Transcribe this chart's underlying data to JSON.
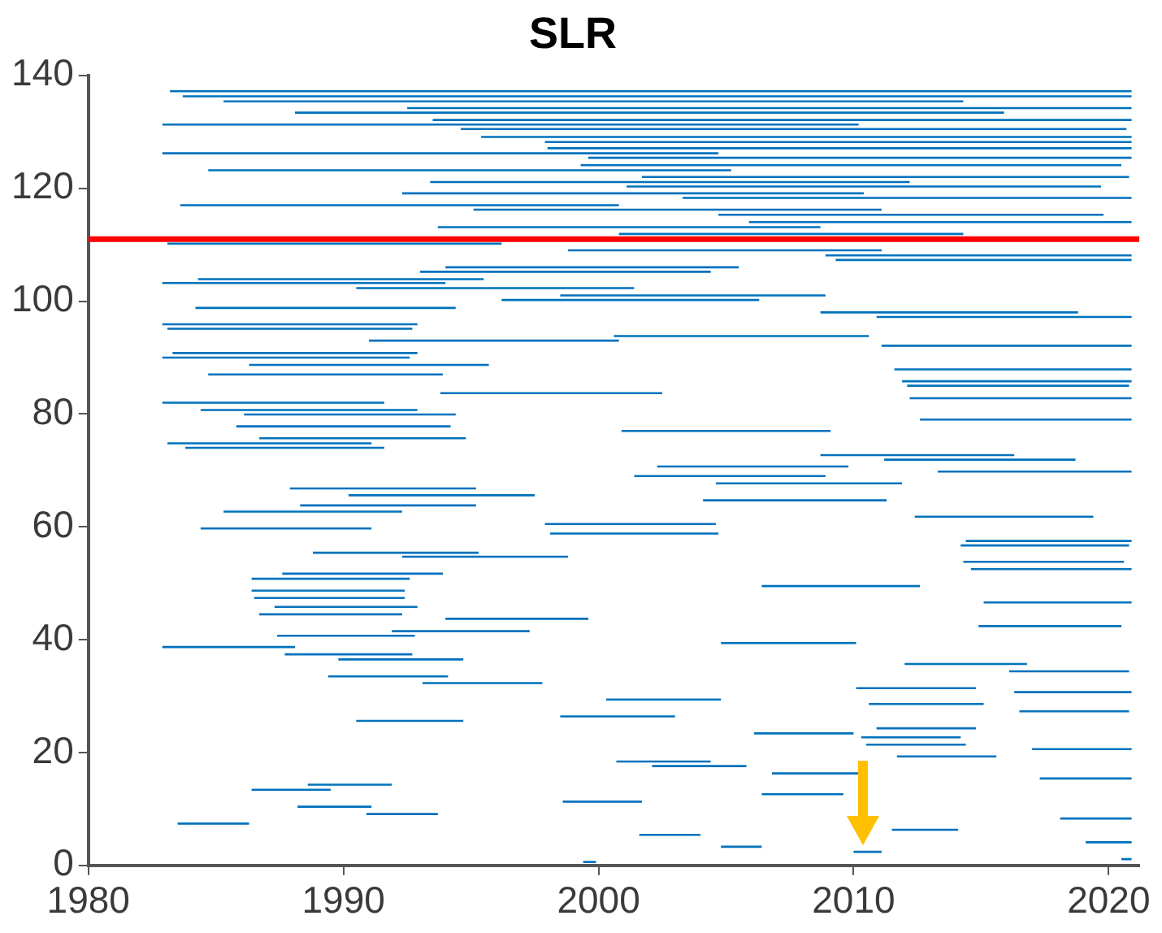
{
  "chart_data": {
    "type": "line",
    "title": "SLR",
    "color": "#0072bd",
    "marker": "none",
    "line_style": "solid",
    "x": [
      1983.2,
      2020.9,
      null,
      1983.7,
      2020.9,
      null,
      1985.3,
      2014.3,
      null,
      1992.5,
      2020.9,
      null,
      1988.1,
      2015.9,
      null,
      1993.5,
      2020.9,
      null,
      1982.9,
      2010.2,
      null,
      1994.6,
      2020.7,
      null,
      1995.4,
      2020.9,
      null,
      1997.9,
      2020.9,
      null,
      1998.0,
      2020.9,
      null,
      1982.9,
      2004.7,
      null,
      1999.6,
      2020.9,
      null,
      1999.3,
      2020.5,
      null,
      1984.7,
      2005.2,
      null,
      2001.7,
      2020.8,
      null,
      1993.4,
      2012.2,
      null,
      2001.1,
      2019.7,
      null,
      1992.3,
      2010.4,
      null,
      2003.3,
      2020.9,
      null,
      1983.6,
      2000.8,
      null,
      1995.1,
      2011.1,
      null,
      2004.7,
      2019.8,
      null,
      2005.9,
      2020.9,
      null,
      1993.7,
      2008.7,
      null,
      2000.8,
      2014.3,
      null,
      1983.1,
      1996.2,
      null,
      1998.8,
      2011.1,
      null,
      2008.9,
      2020.9,
      null,
      2009.3,
      2020.9,
      null,
      1994.0,
      2005.5,
      null,
      1993.0,
      2004.4,
      null,
      1984.3,
      1995.5,
      null,
      1982.9,
      1994.0,
      null,
      1990.5,
      2001.4,
      null,
      1998.5,
      2008.9,
      null,
      1996.2,
      2006.3,
      null,
      1984.2,
      1994.4,
      null,
      2008.7,
      2018.8,
      null,
      2010.9,
      2020.9,
      null,
      1982.9,
      1992.9,
      null,
      1983.1,
      1992.7,
      null,
      2000.6,
      2010.6,
      null,
      1991.0,
      2000.8,
      null,
      2011.1,
      2020.9,
      null,
      1983.3,
      1992.9,
      null,
      1982.9,
      1992.6,
      null,
      1986.3,
      1995.7,
      null,
      2011.6,
      2020.9,
      null,
      1984.7,
      1993.9,
      null,
      2011.9,
      2020.9,
      null,
      2012.1,
      2020.8,
      null,
      1993.8,
      2002.5,
      null,
      2012.2,
      2020.9,
      null,
      1982.9,
      1991.6,
      null,
      1984.4,
      1992.9,
      null,
      1986.1,
      1994.4,
      null,
      2012.6,
      2020.9,
      null,
      1985.8,
      1994.2,
      null,
      2000.9,
      2009.1,
      null,
      1986.7,
      1994.8,
      null,
      1983.1,
      1991.1,
      null,
      1983.8,
      1991.6,
      null,
      2008.7,
      2016.3,
      null,
      2011.2,
      2018.7,
      null,
      2002.3,
      2009.8,
      null,
      2013.3,
      2020.9,
      null,
      2001.4,
      2008.9,
      null,
      2004.6,
      2011.9,
      null,
      1987.9,
      1995.2,
      null,
      1990.2,
      1997.5,
      null,
      2004.1,
      2011.3,
      null,
      1988.3,
      1995.2,
      null,
      1985.3,
      1992.3,
      null,
      2012.4,
      2019.4,
      null,
      1997.9,
      2004.6,
      null,
      1984.4,
      1991.1,
      null,
      1998.1,
      2004.7,
      null,
      2014.4,
      2020.9,
      null,
      2014.2,
      2020.8,
      null,
      1988.8,
      1995.3,
      null,
      1992.3,
      1998.8,
      null,
      2014.3,
      2020.6,
      null,
      2014.6,
      2020.9,
      null,
      1987.6,
      1993.9,
      null,
      1986.4,
      1992.6,
      null,
      2006.4,
      2012.6,
      null,
      1986.4,
      1992.4,
      null,
      1986.5,
      1992.4,
      null,
      2015.1,
      2020.9,
      null,
      1987.3,
      1992.9,
      null,
      1986.7,
      1992.3,
      null,
      1994.0,
      1999.6,
      null,
      2014.9,
      2020.5,
      null,
      1991.9,
      1997.3,
      null,
      1987.4,
      1992.8,
      null,
      2004.8,
      2010.1,
      null,
      1982.9,
      1988.1,
      null,
      1987.7,
      1992.7,
      null,
      1989.8,
      1994.7,
      null,
      2012.0,
      2016.8,
      null,
      2016.1,
      2020.8,
      null,
      1989.4,
      1994.1,
      null,
      1993.1,
      1997.8,
      null,
      2010.1,
      2014.8,
      null,
      2016.3,
      2020.9,
      null,
      2000.3,
      2004.8,
      null,
      2010.6,
      2015.1,
      null,
      2016.5,
      2020.8,
      null,
      1998.5,
      2003.0,
      null,
      1990.5,
      1994.7,
      null,
      2010.9,
      2014.8,
      null,
      2006.1,
      2010.0,
      null,
      2010.3,
      2014.2,
      null,
      2010.5,
      2014.4,
      null,
      2017.0,
      2020.9,
      null,
      2011.7,
      2015.6,
      null,
      2000.7,
      2004.4,
      null,
      2002.1,
      2005.8,
      null,
      2006.8,
      2010.4,
      null,
      2017.3,
      2020.9,
      null,
      1988.6,
      1991.9,
      null,
      1986.4,
      1989.5,
      null,
      2006.4,
      2009.6,
      null,
      1998.6,
      2001.7,
      null,
      1988.2,
      1991.1,
      null,
      1990.9,
      1993.7,
      null,
      2018.1,
      2020.9,
      null,
      1983.5,
      1986.3,
      null,
      2011.5,
      2014.1,
      null,
      2001.6,
      2004.0,
      null,
      2019.1,
      2020.9,
      null,
      2004.8,
      2006.4,
      null,
      2010.0,
      2011.1,
      null,
      2020.5,
      2020.9,
      null,
      1999.4,
      1999.9,
      null
    ],
    "values": [
      137.2,
      137.2,
      null,
      136.3,
      136.3,
      null,
      135.4,
      135.4,
      null,
      134.2,
      134.2,
      null,
      133.4,
      133.4,
      null,
      132.1,
      132.1,
      null,
      131.3,
      131.3,
      null,
      130.5,
      130.5,
      null,
      129.1,
      129.1,
      null,
      128.2,
      128.2,
      null,
      127.1,
      127.1,
      null,
      126.2,
      126.2,
      null,
      125.4,
      125.4,
      null,
      124.1,
      124.1,
      null,
      123.2,
      123.2,
      null,
      122.0,
      122.0,
      null,
      121.1,
      121.1,
      null,
      120.3,
      120.3,
      null,
      119.1,
      119.1,
      null,
      118.3,
      118.3,
      null,
      117.0,
      117.0,
      null,
      116.2,
      116.2,
      null,
      115.3,
      115.3,
      null,
      114.0,
      114.0,
      null,
      113.1,
      113.1,
      null,
      111.9,
      111.9,
      null,
      110.2,
      110.2,
      null,
      109.0,
      109.0,
      null,
      108.1,
      108.1,
      null,
      107.3,
      107.3,
      null,
      106.0,
      106.0,
      null,
      105.2,
      105.2,
      null,
      103.9,
      103.9,
      null,
      103.2,
      103.2,
      null,
      102.3,
      102.3,
      null,
      101.0,
      101.0,
      null,
      100.2,
      100.2,
      null,
      98.8,
      98.8,
      null,
      98.0,
      98.0,
      null,
      97.2,
      97.2,
      null,
      95.9,
      95.9,
      null,
      95.1,
      95.1,
      null,
      93.8,
      93.8,
      null,
      93.0,
      93.0,
      null,
      92.1,
      92.1,
      null,
      90.8,
      90.8,
      null,
      90.0,
      90.0,
      null,
      88.7,
      88.7,
      null,
      87.9,
      87.9,
      null,
      87.0,
      87.0,
      null,
      85.8,
      85.8,
      null,
      85.0,
      85.0,
      null,
      83.7,
      83.7,
      null,
      82.8,
      82.8,
      null,
      82.0,
      82.0,
      null,
      80.7,
      80.7,
      null,
      79.9,
      79.9,
      null,
      79.0,
      79.0,
      null,
      77.8,
      77.8,
      null,
      77.0,
      77.0,
      null,
      75.7,
      75.7,
      null,
      74.8,
      74.8,
      null,
      74.0,
      74.0,
      null,
      72.7,
      72.7,
      null,
      71.9,
      71.9,
      null,
      70.7,
      70.7,
      null,
      69.8,
      69.8,
      null,
      69.0,
      69.0,
      null,
      67.7,
      67.7,
      null,
      66.8,
      66.8,
      null,
      65.6,
      65.6,
      null,
      64.7,
      64.7,
      null,
      63.8,
      63.8,
      null,
      62.7,
      62.7,
      null,
      61.8,
      61.8,
      null,
      60.5,
      60.5,
      null,
      59.7,
      59.7,
      null,
      58.8,
      58.8,
      null,
      57.5,
      57.5,
      null,
      56.7,
      56.7,
      null,
      55.4,
      55.4,
      null,
      54.7,
      54.7,
      null,
      53.8,
      53.8,
      null,
      52.5,
      52.5,
      null,
      51.7,
      51.7,
      null,
      50.8,
      50.8,
      null,
      49.5,
      49.5,
      null,
      48.7,
      48.7,
      null,
      47.4,
      47.4,
      null,
      46.6,
      46.6,
      null,
      45.8,
      45.8,
      null,
      44.5,
      44.5,
      null,
      43.7,
      43.7,
      null,
      42.4,
      42.4,
      null,
      41.5,
      41.5,
      null,
      40.7,
      40.7,
      null,
      39.4,
      39.4,
      null,
      38.7,
      38.7,
      null,
      37.4,
      37.4,
      null,
      36.5,
      36.5,
      null,
      35.7,
      35.7,
      null,
      34.4,
      34.4,
      null,
      33.5,
      33.5,
      null,
      32.3,
      32.3,
      null,
      31.4,
      31.4,
      null,
      30.7,
      30.7,
      null,
      29.4,
      29.4,
      null,
      28.6,
      28.6,
      null,
      27.3,
      27.3,
      null,
      26.4,
      26.4,
      null,
      25.6,
      25.6,
      null,
      24.3,
      24.3,
      null,
      23.4,
      23.4,
      null,
      22.7,
      22.7,
      null,
      21.4,
      21.4,
      null,
      20.6,
      20.6,
      null,
      19.3,
      19.3,
      null,
      18.4,
      18.4,
      null,
      17.6,
      17.6,
      null,
      16.3,
      16.3,
      null,
      15.4,
      15.4,
      null,
      14.3,
      14.3,
      null,
      13.4,
      13.4,
      null,
      12.6,
      12.6,
      null,
      11.3,
      11.3,
      null,
      10.4,
      10.4,
      null,
      9.1,
      9.1,
      null,
      8.3,
      8.3,
      null,
      7.4,
      7.4,
      null,
      6.3,
      6.3,
      null,
      5.4,
      5.4,
      null,
      4.1,
      4.1,
      null,
      3.3,
      3.3,
      null,
      2.4,
      2.4,
      null,
      1.1,
      1.1,
      null,
      0.6,
      0.6,
      null
    ],
    "xlim": [
      1980,
      2021.2
    ],
    "xticks": [
      1980,
      1990,
      2000,
      2010,
      2020
    ],
    "ylim": [
      0,
      140
    ],
    "yticks": [
      0,
      20,
      40,
      60,
      80,
      100,
      120,
      140
    ],
    "ref_lines": [
      {
        "axis": "y",
        "value": 111,
        "color": "#ff0000"
      }
    ]
  }
}
